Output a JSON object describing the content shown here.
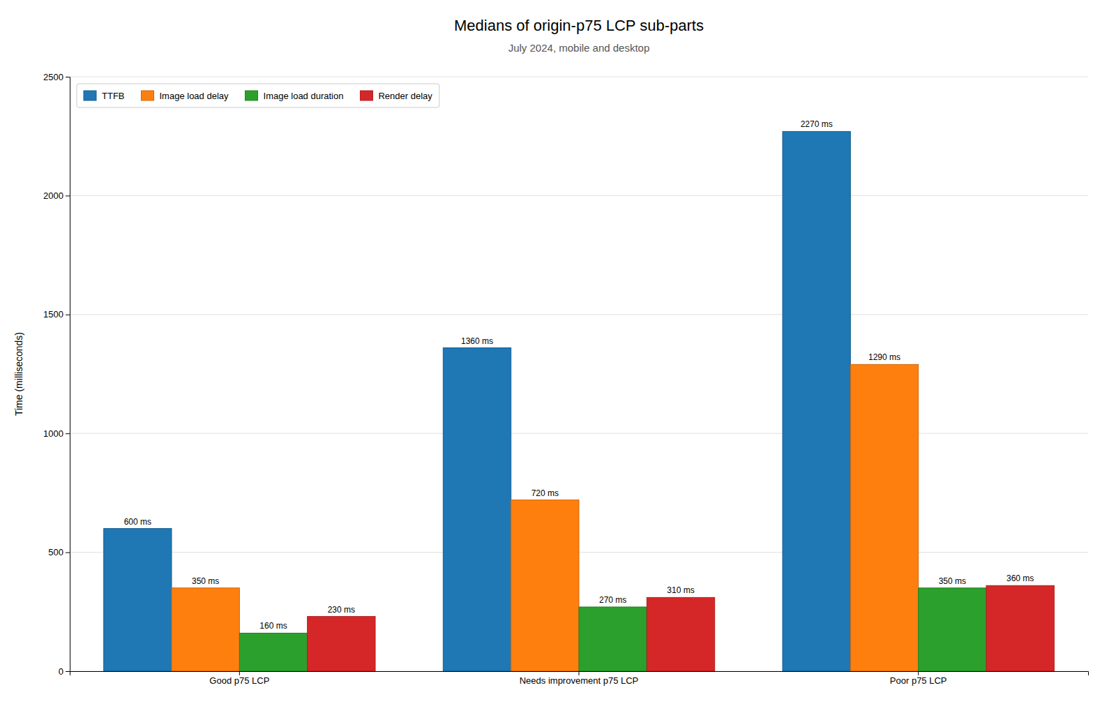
{
  "chart_data": {
    "type": "bar",
    "title": "Medians of origin-p75 LCP sub-parts",
    "subtitle": "July 2024, mobile and desktop",
    "categories": [
      "Good p75 LCP",
      "Needs improvement p75 LCP",
      "Poor p75 LCP"
    ],
    "series": [
      {
        "name": "TTFB",
        "values": [
          600,
          1360,
          2270
        ],
        "value_labels": [
          "600 ms",
          "1360 ms",
          "2270 ms"
        ]
      },
      {
        "name": "Image load delay",
        "values": [
          350,
          720,
          1290
        ],
        "value_labels": [
          "350 ms",
          "720 ms",
          "1290 ms"
        ]
      },
      {
        "name": "Image load duration",
        "values": [
          160,
          270,
          350
        ],
        "value_labels": [
          "160 ms",
          "270 ms",
          "350 ms"
        ]
      },
      {
        "name": "Render delay",
        "values": [
          230,
          310,
          360
        ],
        "value_labels": [
          "230 ms",
          "310 ms",
          "360 ms"
        ]
      }
    ],
    "ylim": [
      0,
      2500
    ],
    "yticks": [
      0,
      500,
      1000,
      1500,
      2000,
      2500
    ],
    "ylabel": "Time (milliseconds)",
    "grid": true,
    "legend": "upper left",
    "data_labels": true
  }
}
